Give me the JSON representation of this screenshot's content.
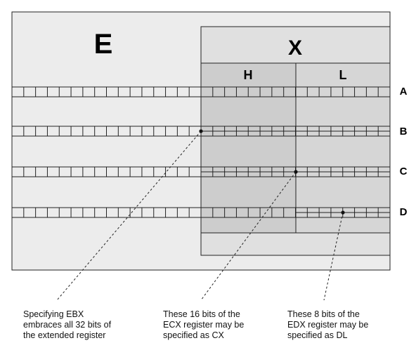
{
  "regions": {
    "extended": "E",
    "x": "X",
    "high": "H",
    "low": "L"
  },
  "registers": [
    "A",
    "B",
    "C",
    "D"
  ],
  "captions": {
    "ebx": "Specifying EBX\nembraces all 32 bits of\nthe extended register",
    "cx": "These 16 bits of the\nECX register may be\nspecified as CX",
    "dl": "These 8 bits of the\nEDX register may be\nspecified as DL"
  },
  "colors": {
    "background": "#ececec",
    "x_box": "#e0e0e0",
    "h_column": "#cdcdcd",
    "l_column": "#d6d6d6",
    "stroke": "#222222"
  }
}
